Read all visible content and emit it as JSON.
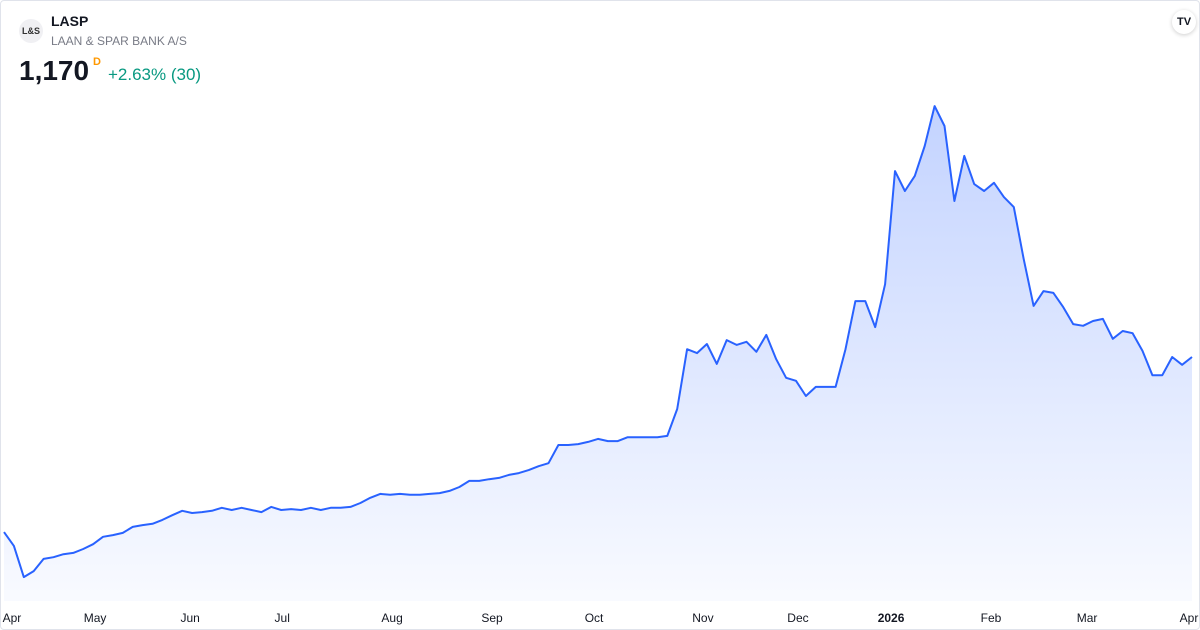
{
  "header": {
    "logo": "L&S",
    "symbol": "LASP",
    "name": "LAAN & SPAR BANK A/S",
    "price": "1,170",
    "interval": "D",
    "change": "+2.63% (30)",
    "brand": "TV"
  },
  "chart_data": {
    "type": "area",
    "color": "#2962ff",
    "values": [
      766,
      734,
      662,
      676,
      704,
      708,
      715,
      718,
      727,
      738,
      755,
      759,
      764,
      778,
      782,
      785,
      794,
      805,
      815,
      810,
      812,
      815,
      822,
      817,
      822,
      817,
      812,
      824,
      817,
      819,
      817,
      822,
      817,
      822,
      822,
      824,
      833,
      845,
      854,
      852,
      854,
      852,
      852,
      854,
      856,
      861,
      870,
      884,
      884,
      888,
      891,
      898,
      902,
      909,
      918,
      925,
      967,
      967,
      969,
      974,
      981,
      976,
      976,
      985,
      985,
      985,
      985,
      988,
      1050,
      1188,
      1179,
      1200,
      1154,
      1209,
      1198,
      1205,
      1182,
      1221,
      1165,
      1122,
      1115,
      1080,
      1101,
      1101,
      1101,
      1188,
      1299,
      1299,
      1239,
      1338,
      1599,
      1553,
      1588,
      1657,
      1749,
      1703,
      1530,
      1634,
      1569,
      1553,
      1572,
      1539,
      1516,
      1396,
      1288,
      1322,
      1318,
      1285,
      1246,
      1242,
      1253,
      1258,
      1212,
      1230,
      1225,
      1184,
      1128,
      1128,
      1170,
      1152,
      1170
    ],
    "ylim": [
      600,
      1800
    ],
    "xticks": [
      {
        "value": 0.8,
        "label": "Apr"
      },
      {
        "value": 9.2,
        "label": "May"
      },
      {
        "value": 18.8,
        "label": "Jun"
      },
      {
        "value": 28.1,
        "label": "Jul"
      },
      {
        "value": 39.2,
        "label": "Aug"
      },
      {
        "value": 49.3,
        "label": "Sep"
      },
      {
        "value": 59.6,
        "label": "Oct"
      },
      {
        "value": 70.6,
        "label": "Nov"
      },
      {
        "value": 80.2,
        "label": "Dec"
      },
      {
        "value": 89.6,
        "label": "2026"
      },
      {
        "value": 99.7,
        "label": "Feb"
      },
      {
        "value": 109.4,
        "label": "Mar"
      },
      {
        "value": 119.7,
        "label": "Apr"
      }
    ]
  }
}
